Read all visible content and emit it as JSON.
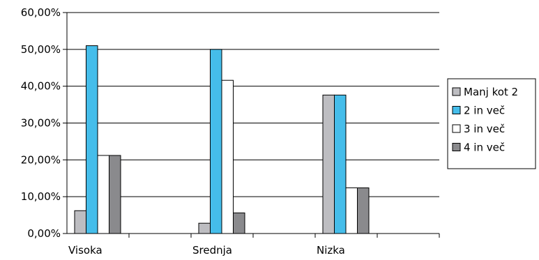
{
  "chart_data": {
    "type": "bar",
    "categories": [
      "Visoka",
      "Srednja",
      "Nizka"
    ],
    "series": [
      {
        "name": "Manj kot 2",
        "color": "#BDBDC1",
        "values": [
          6.2,
          2.8,
          37.6
        ]
      },
      {
        "name": "2 in več",
        "color": "#45BDEA",
        "values": [
          51.0,
          50.0,
          37.6
        ]
      },
      {
        "name": "3 in več",
        "color": "#FFFFFF",
        "values": [
          21.2,
          41.6,
          12.4
        ]
      },
      {
        "name": "4 in več",
        "color": "#8A8A8D",
        "values": [
          21.2,
          5.6,
          12.4
        ]
      }
    ],
    "ylim": [
      0,
      60
    ],
    "yticks": [
      0,
      10,
      20,
      30,
      40,
      50,
      60
    ],
    "ytick_labels": [
      "0,00%",
      "10,00%",
      "20,00%",
      "30,00%",
      "40,00%",
      "50,00%",
      "60,00%"
    ],
    "grid": true,
    "legend_position": "right",
    "title": "",
    "xlabel": "",
    "ylabel": ""
  }
}
